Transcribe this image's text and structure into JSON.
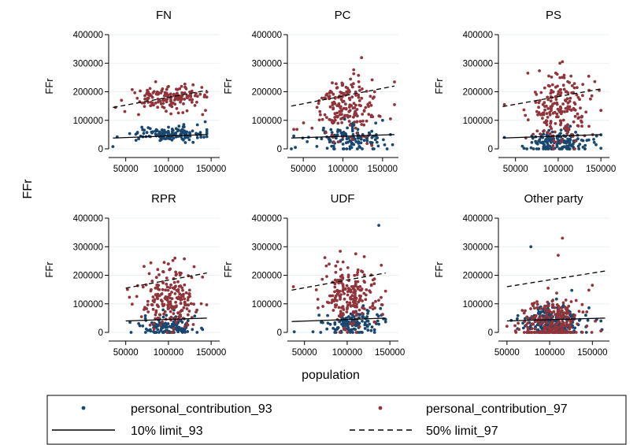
{
  "figure": {
    "common_ylabel": "FFr",
    "common_xlabel": "population"
  },
  "chart_data": [
    {
      "type": "scatter",
      "title": "FN",
      "ylabel": "FFr",
      "xlabel": "",
      "xlim": [
        30000,
        160000
      ],
      "ylim": [
        0,
        400000
      ],
      "xticks": [
        50000,
        100000,
        150000
      ],
      "yticks": [
        0,
        100000,
        200000,
        300000,
        400000
      ],
      "grid": true,
      "x_range": [
        35000,
        145000
      ],
      "series": [
        {
          "name": "personal_contribution_93",
          "color": "#1a476f",
          "center": [
            100000,
            52000
          ],
          "spread": [
            20000,
            12000
          ],
          "n": 140,
          "points": [
            [
              35000,
              8000
            ],
            [
              40000,
              42000
            ],
            [
              62000,
              30000
            ],
            [
              143000,
              95000
            ],
            [
              118000,
              85000
            ]
          ]
        },
        {
          "name": "personal_contribution_97",
          "color": "#90353b",
          "center": [
            100000,
            180000
          ],
          "spread": [
            20000,
            22000
          ],
          "n": 150,
          "points": [
            [
              38000,
              145000
            ],
            [
              45000,
              170000
            ],
            [
              65000,
              120000
            ],
            [
              85000,
              235000
            ],
            [
              140000,
              120000
            ],
            [
              120000,
              215000
            ]
          ]
        },
        {
          "name": "10% limit_93",
          "style": "solid",
          "x": [
            35000,
            145000
          ],
          "y": [
            38000,
            50000
          ]
        },
        {
          "name": "50% limit_97",
          "style": "dashed",
          "x": [
            35000,
            145000
          ],
          "y": [
            145000,
            205000
          ]
        }
      ]
    },
    {
      "type": "scatter",
      "title": "PC",
      "ylabel": "FFr",
      "xlabel": "",
      "xlim": [
        30000,
        170000
      ],
      "ylim": [
        0,
        400000
      ],
      "xticks": [
        50000,
        100000,
        150000
      ],
      "yticks": [
        0,
        100000,
        200000,
        300000,
        400000
      ],
      "grid": true,
      "x_range": [
        35000,
        165000
      ],
      "series": [
        {
          "name": "personal_contribution_93",
          "color": "#1a476f",
          "center": [
            105000,
            30000
          ],
          "spread": [
            22000,
            25000
          ],
          "n": 120,
          "points": [
            [
              38000,
              45000
            ],
            [
              55000,
              25000
            ],
            [
              160000,
              50000
            ],
            [
              150000,
              100000
            ],
            [
              40000,
              5000
            ]
          ]
        },
        {
          "name": "personal_contribution_97",
          "color": "#90353b",
          "center": [
            105000,
            150000
          ],
          "spread": [
            20000,
            50000
          ],
          "n": 190,
          "points": [
            [
              38000,
              68000
            ],
            [
              42000,
              68000
            ],
            [
              120000,
              235000
            ],
            [
              140000,
              200000
            ],
            [
              160000,
              105000
            ]
          ]
        },
        {
          "name": "10% limit_93",
          "style": "solid",
          "x": [
            35000,
            165000
          ],
          "y": [
            38000,
            50000
          ]
        },
        {
          "name": "50% limit_97",
          "style": "dashed",
          "x": [
            35000,
            165000
          ],
          "y": [
            150000,
            220000
          ]
        }
      ]
    },
    {
      "type": "scatter",
      "title": "PS",
      "ylabel": "FFr",
      "xlabel": "",
      "xlim": [
        30000,
        160000
      ],
      "ylim": [
        0,
        400000
      ],
      "xticks": [
        50000,
        100000,
        150000
      ],
      "yticks": [
        0,
        100000,
        200000,
        300000,
        400000
      ],
      "grid": true,
      "x_range": [
        35000,
        150000
      ],
      "series": [
        {
          "name": "personal_contribution_93",
          "color": "#1a476f",
          "center": [
            102000,
            25000
          ],
          "spread": [
            18000,
            22000
          ],
          "n": 160,
          "points": [
            [
              37000,
              40000
            ],
            [
              60000,
              2000
            ],
            [
              145000,
              45000
            ],
            [
              150000,
              2000
            ]
          ]
        },
        {
          "name": "personal_contribution_97",
          "color": "#90353b",
          "center": [
            102000,
            140000
          ],
          "spread": [
            18000,
            60000
          ],
          "n": 200,
          "points": [
            [
              37000,
              155000
            ],
            [
              105000,
              305000
            ],
            [
              102000,
              300000
            ],
            [
              115000,
              255000
            ],
            [
              148000,
              205000
            ]
          ]
        },
        {
          "name": "10% limit_93",
          "style": "solid",
          "x": [
            35000,
            150000
          ],
          "y": [
            38000,
            50000
          ]
        },
        {
          "name": "50% limit_97",
          "style": "dashed",
          "x": [
            35000,
            150000
          ],
          "y": [
            148000,
            210000
          ]
        }
      ]
    },
    {
      "type": "scatter",
      "title": "RPR",
      "ylabel": "FFr",
      "xlabel": "",
      "xlim": [
        30000,
        160000
      ],
      "ylim": [
        0,
        400000
      ],
      "xticks": [
        50000,
        100000,
        150000
      ],
      "yticks": [
        0,
        100000,
        200000,
        300000,
        400000
      ],
      "grid": true,
      "x_range": [
        50000,
        145000
      ],
      "series": [
        {
          "name": "personal_contribution_93",
          "color": "#1a476f",
          "center": [
            100000,
            20000
          ],
          "spread": [
            16000,
            20000
          ],
          "n": 130,
          "points": [
            [
              55000,
              35000
            ],
            [
              140000,
              10000
            ]
          ]
        },
        {
          "name": "personal_contribution_97",
          "color": "#90353b",
          "center": [
            100000,
            120000
          ],
          "spread": [
            16000,
            55000
          ],
          "n": 210,
          "points": [
            [
              52000,
              150000
            ],
            [
              95000,
              245000
            ],
            [
              100000,
              240000
            ],
            [
              130000,
              230000
            ]
          ]
        },
        {
          "name": "10% limit_93",
          "style": "solid",
          "x": [
            50000,
            145000
          ],
          "y": [
            40000,
            50000
          ]
        },
        {
          "name": "50% limit_97",
          "style": "dashed",
          "x": [
            50000,
            145000
          ],
          "y": [
            155000,
            208000
          ]
        }
      ]
    },
    {
      "type": "scatter",
      "title": "UDF",
      "ylabel": "FFr",
      "xlabel": "",
      "xlim": [
        30000,
        160000
      ],
      "ylim": [
        0,
        400000
      ],
      "xticks": [
        50000,
        100000,
        150000
      ],
      "yticks": [
        0,
        100000,
        200000,
        300000,
        400000
      ],
      "grid": true,
      "x_range": [
        35000,
        145000
      ],
      "series": [
        {
          "name": "personal_contribution_93",
          "color": "#1a476f",
          "center": [
            105000,
            30000
          ],
          "spread": [
            16000,
            25000
          ],
          "n": 130,
          "points": [
            [
              38000,
              2000
            ],
            [
              60000,
              2000
            ],
            [
              137000,
              375000
            ],
            [
              140000,
              60000
            ]
          ]
        },
        {
          "name": "personal_contribution_97",
          "color": "#90353b",
          "center": [
            103000,
            130000
          ],
          "spread": [
            16000,
            55000
          ],
          "n": 200,
          "points": [
            [
              37000,
              160000
            ],
            [
              110000,
              275000
            ],
            [
              120000,
              265000
            ],
            [
              140000,
              235000
            ]
          ]
        },
        {
          "name": "10% limit_93",
          "style": "solid",
          "x": [
            35000,
            145000
          ],
          "y": [
            38000,
            50000
          ]
        },
        {
          "name": "50% limit_97",
          "style": "dashed",
          "x": [
            35000,
            145000
          ],
          "y": [
            148000,
            208000
          ]
        }
      ]
    },
    {
      "type": "scatter",
      "title": "Other party",
      "ylabel": "FFr",
      "xlabel": "",
      "xlim": [
        40000,
        170000
      ],
      "ylim": [
        0,
        400000
      ],
      "xticks": [
        50000,
        100000,
        150000
      ],
      "yticks": [
        0,
        100000,
        200000,
        300000,
        400000
      ],
      "grid": true,
      "x_range": [
        50000,
        165000
      ],
      "series": [
        {
          "name": "personal_contribution_93",
          "color": "#1a476f",
          "center": [
            103000,
            35000
          ],
          "spread": [
            18000,
            28000
          ],
          "n": 220,
          "points": [
            [
              78000,
              300000
            ],
            [
              55000,
              42000
            ],
            [
              155000,
              45000
            ],
            [
              160000,
              40000
            ]
          ]
        },
        {
          "name": "personal_contribution_97",
          "color": "#90353b",
          "center": [
            103000,
            30000
          ],
          "spread": [
            18000,
            50000
          ],
          "n": 260,
          "points": [
            [
              115000,
              330000
            ],
            [
              110000,
              270000
            ],
            [
              60000,
              5000
            ],
            [
              160000,
              5000
            ],
            [
              150000,
              165000
            ]
          ]
        },
        {
          "name": "10% limit_93",
          "style": "solid",
          "x": [
            50000,
            165000
          ],
          "y": [
            40000,
            50000
          ]
        },
        {
          "name": "50% limit_97",
          "style": "dashed",
          "x": [
            50000,
            165000
          ],
          "y": [
            160000,
            215000
          ]
        }
      ]
    }
  ],
  "legend": {
    "items": [
      {
        "label": "personal_contribution_93",
        "kind": "dot",
        "color": "#1a476f"
      },
      {
        "label": "personal_contribution_97",
        "kind": "dot",
        "color": "#90353b"
      },
      {
        "label": "10% limit_93",
        "kind": "solid-line",
        "color": "#000000"
      },
      {
        "label": "50% limit_97",
        "kind": "dashed-line",
        "color": "#000000"
      }
    ]
  }
}
